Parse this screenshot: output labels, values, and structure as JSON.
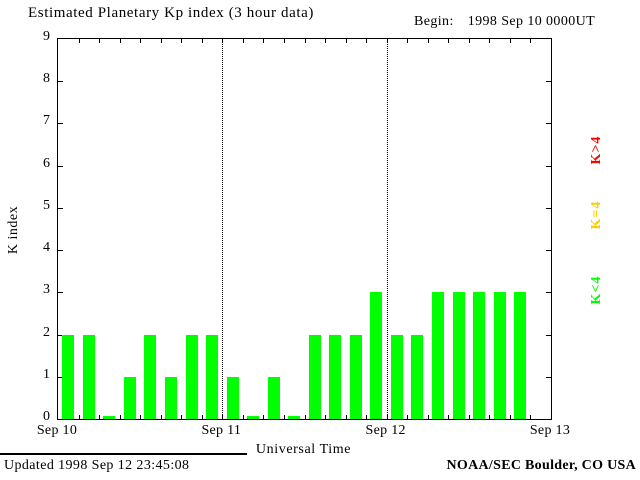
{
  "title": "Estimated Planetary Kp index (3 hour data)",
  "begin": {
    "label": "Begin:",
    "value": "1998 Sep 10 0000UT"
  },
  "footer": {
    "updated": "Updated 1998 Sep 12 23:45:08",
    "credit": "NOAA/SEC Boulder, CO USA"
  },
  "legend": [
    {
      "label": "K>4",
      "color": "#ff0000"
    },
    {
      "label": "K=4",
      "color": "#ffcc00"
    },
    {
      "label": "K<4",
      "color": "#00ff00"
    }
  ],
  "chart_data": {
    "type": "bar",
    "title": "Estimated Planetary Kp index (3 hour data)",
    "xlabel": "Universal Time",
    "ylabel": "K index",
    "ylim": [
      0,
      9
    ],
    "y_ticks": [
      0,
      1,
      2,
      3,
      4,
      5,
      6,
      7,
      8,
      9
    ],
    "x_ticks": [
      "Sep 10",
      "Sep 11",
      "Sep 12",
      "Sep 13"
    ],
    "hours_per_bar": 3,
    "total_hours": 72,
    "bar_color": "#00ff00",
    "grid": "dotted vertical lines at interior day boundaries",
    "day_divider_hours": [
      24,
      48
    ],
    "values": [
      2,
      2,
      0,
      1,
      2,
      1,
      2,
      2,
      1,
      0,
      1,
      0,
      2,
      2,
      2,
      3,
      2,
      2,
      3,
      3,
      3,
      3,
      3
    ],
    "values_by_day": {
      "Sep 10": [
        2,
        2,
        0,
        1,
        2,
        1,
        2,
        2
      ],
      "Sep 11": [
        1,
        0,
        1,
        0,
        2,
        2,
        2,
        3
      ],
      "Sep 12": [
        2,
        2,
        3,
        3,
        3,
        3,
        3
      ]
    }
  }
}
